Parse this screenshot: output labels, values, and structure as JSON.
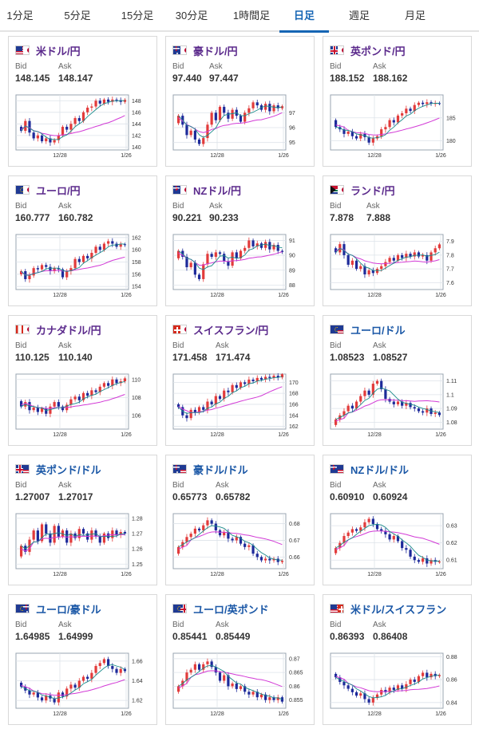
{
  "tabs": [
    {
      "label": "1分足",
      "active": false
    },
    {
      "label": "5分足",
      "active": false
    },
    {
      "label": "15分足",
      "active": false
    },
    {
      "label": "30分足",
      "active": false
    },
    {
      "label": "1時間足",
      "active": false
    },
    {
      "label": "日足",
      "active": true
    },
    {
      "label": "週足",
      "active": false
    },
    {
      "label": "月足",
      "active": false
    }
  ],
  "labels": {
    "bid": "Bid",
    "ask": "Ask"
  },
  "colors": {
    "up": "#e23b3b",
    "down": "#1d2a9a",
    "ma_short": "#1a8a8a",
    "ma_long": "#d23ad6",
    "title_purple": "#5b2a8c",
    "title_blue": "#1a57a6",
    "active_tab": "#1565b4"
  },
  "cards": [
    {
      "name": "米ドル/円",
      "flag": "us",
      "bid": "148.145",
      "ask": "148.147",
      "yticks": [
        "148",
        "146",
        "144",
        "142",
        "140"
      ],
      "xticks": [
        "12/28",
        "1/26"
      ],
      "chart_data": {
        "type": "candlestick",
        "x": [
          "12/28",
          "1/26"
        ],
        "ylim": [
          139.5,
          149
        ],
        "path": [
          143.5,
          142.8,
          144.5,
          142.5,
          141.5,
          142,
          141,
          141.5,
          140.8,
          141.2,
          142,
          143.5,
          143,
          144,
          145,
          144.5,
          146,
          146.8,
          147,
          148,
          147.5,
          148.2,
          147.8,
          148.2,
          148.1,
          147.8,
          148.145
        ]
      }
    },
    {
      "name": "豪ドル/円",
      "flag": "au",
      "bid": "97.440",
      "ask": "97.447",
      "yticks": [
        "97",
        "96",
        "95"
      ],
      "xticks": [
        "12/28",
        "1/26"
      ],
      "chart_data": {
        "type": "candlestick",
        "x": [
          "12/28",
          "1/26"
        ],
        "ylim": [
          94.5,
          98.2
        ],
        "path": [
          96.3,
          96.8,
          96.2,
          95.5,
          95.8,
          95.2,
          94.9,
          95.3,
          96.2,
          97,
          96.5,
          97.4,
          97,
          96.6,
          97.2,
          96.8,
          96.4,
          97,
          97.3,
          97.7,
          97.5,
          97.2,
          97.6,
          97.1,
          97.5,
          97.3,
          97.44
        ]
      }
    },
    {
      "name": "英ポンド/円",
      "flag": "gb",
      "bid": "188.152",
      "ask": "188.162",
      "yticks": [
        "185",
        "180"
      ],
      "xticks": [
        "12/28",
        "1/26"
      ],
      "chart_data": {
        "type": "candlestick",
        "x": [
          "12/28",
          "1/26"
        ],
        "ylim": [
          178,
          190
        ],
        "path": [
          184.5,
          183,
          182.5,
          181.5,
          182,
          181,
          180.5,
          181.5,
          180.8,
          179.6,
          180.5,
          181,
          182.5,
          183,
          184.5,
          184,
          185.5,
          186,
          187,
          186.5,
          187.8,
          188.3,
          188,
          188.4,
          188.1,
          188.2,
          188.152
        ]
      }
    },
    {
      "name": "ユーロ/円",
      "flag": "eu",
      "bid": "160.777",
      "ask": "160.782",
      "yticks": [
        "162",
        "160",
        "158",
        "156",
        "154"
      ],
      "xticks": [
        "12/28",
        "1/26"
      ],
      "chart_data": {
        "type": "candlestick",
        "x": [
          "12/28",
          "1/26"
        ],
        "ylim": [
          153.5,
          162.5
        ],
        "path": [
          156,
          156.5,
          155.2,
          155.8,
          157,
          156.8,
          157.5,
          157.2,
          156.5,
          157,
          156.8,
          155.5,
          156.5,
          157,
          158.5,
          158,
          159,
          158.6,
          159.5,
          160.5,
          160,
          161,
          161.4,
          161,
          160.5,
          160.9,
          160.777
        ]
      }
    },
    {
      "name": "NZドル/円",
      "flag": "nz",
      "bid": "90.221",
      "ask": "90.233",
      "yticks": [
        "91",
        "90",
        "89",
        "88"
      ],
      "xticks": [
        "12/28",
        "1/26"
      ],
      "chart_data": {
        "type": "candlestick",
        "x": [
          "12/28",
          "1/26"
        ],
        "ylim": [
          87.7,
          91.4
        ],
        "path": [
          89.8,
          90.3,
          89.9,
          89.2,
          89.5,
          88.7,
          88.4,
          89.4,
          90.1,
          89.9,
          90.2,
          90.1,
          89.6,
          89.3,
          90.2,
          89.8,
          90.3,
          90.5,
          91,
          90.6,
          90.8,
          90.5,
          90.9,
          90.4,
          90.7,
          90.3,
          90.221
        ]
      }
    },
    {
      "name": "ランド/円",
      "flag": "za",
      "bid": "7.878",
      "ask": "7.888",
      "yticks": [
        "7.9",
        "7.8",
        "7.7",
        "7.6"
      ],
      "xticks": [
        "12/28",
        "1/26"
      ],
      "chart_data": {
        "type": "candlestick",
        "x": [
          "12/28",
          "1/26"
        ],
        "ylim": [
          7.55,
          7.95
        ],
        "path": [
          7.85,
          7.82,
          7.88,
          7.8,
          7.73,
          7.76,
          7.7,
          7.72,
          7.66,
          7.69,
          7.67,
          7.7,
          7.72,
          7.75,
          7.78,
          7.76,
          7.8,
          7.78,
          7.81,
          7.79,
          7.82,
          7.79,
          7.8,
          7.76,
          7.82,
          7.85,
          7.878
        ]
      }
    },
    {
      "name": "カナダドル/円",
      "flag": "ca",
      "bid": "110.125",
      "ask": "110.140",
      "yticks": [
        "110",
        "108",
        "106"
      ],
      "xticks": [
        "12/28",
        "1/26"
      ],
      "chart_data": {
        "type": "candlestick",
        "x": [
          "12/28",
          "1/26"
        ],
        "ylim": [
          104.5,
          110.6
        ],
        "path": [
          107.6,
          107,
          107.5,
          106.6,
          106.9,
          106.4,
          106.8,
          106.2,
          107,
          107.5,
          107,
          106.6,
          107.2,
          107.8,
          108.1,
          107.7,
          108.5,
          108.2,
          108.8,
          108.6,
          109.2,
          109.6,
          109.3,
          110,
          109.6,
          109.8,
          110.125
        ]
      }
    },
    {
      "name": "スイスフラン/円",
      "flag": "ch",
      "bid": "171.458",
      "ask": "171.474",
      "yticks": [
        "170",
        "168",
        "166",
        "164",
        "162"
      ],
      "xticks": [
        "12/28",
        "1/26"
      ],
      "chart_data": {
        "type": "candlestick",
        "x": [
          "12/28",
          "1/26"
        ],
        "ylim": [
          161.5,
          171.5
        ],
        "path": [
          166,
          165.5,
          164,
          163.5,
          165,
          164.5,
          165.5,
          165,
          166.5,
          166,
          167.5,
          167,
          168.5,
          168.2,
          169.5,
          169,
          170,
          169.7,
          170.5,
          170.2,
          170.8,
          170.5,
          171,
          170.8,
          171.2,
          170.9,
          171.458
        ]
      }
    },
    {
      "name": "ユーロ/ドル",
      "flag": "eu-us",
      "blue": true,
      "bid": "1.08523",
      "ask": "1.08527",
      "yticks": [
        "1.11",
        "1.1",
        "1.09",
        "1.08"
      ],
      "xticks": [
        "12/28",
        "1/26"
      ],
      "chart_data": {
        "type": "candlestick",
        "x": [
          "12/28",
          "1/26"
        ],
        "ylim": [
          1.075,
          1.115
        ],
        "path": [
          1.078,
          1.082,
          1.085,
          1.088,
          1.092,
          1.09,
          1.095,
          1.099,
          1.103,
          1.1,
          1.108,
          1.11,
          1.104,
          1.097,
          1.095,
          1.093,
          1.095,
          1.092,
          1.094,
          1.091,
          1.09,
          1.088,
          1.087,
          1.09,
          1.086,
          1.087,
          1.08523
        ]
      }
    },
    {
      "name": "英ポンド/ドル",
      "flag": "gb-us",
      "blue": true,
      "bid": "1.27007",
      "ask": "1.27017",
      "yticks": [
        "1.28",
        "1.27",
        "1.26",
        "1.25"
      ],
      "xticks": [
        "12/28",
        "1/26"
      ],
      "chart_data": {
        "type": "candlestick",
        "x": [
          "12/28",
          "1/26"
        ],
        "ylim": [
          1.247,
          1.283
        ],
        "path": [
          1.255,
          1.262,
          1.258,
          1.266,
          1.272,
          1.265,
          1.276,
          1.27,
          1.264,
          1.275,
          1.268,
          1.272,
          1.264,
          1.27,
          1.267,
          1.273,
          1.27,
          1.266,
          1.272,
          1.268,
          1.264,
          1.27,
          1.267,
          1.272,
          1.269,
          1.271,
          1.27007
        ]
      }
    },
    {
      "name": "豪ドル/ドル",
      "flag": "au-us",
      "blue": true,
      "bid": "0.65773",
      "ask": "0.65782",
      "yticks": [
        "0.68",
        "0.67",
        "0.66"
      ],
      "xticks": [
        "12/28",
        "1/26"
      ],
      "chart_data": {
        "type": "candlestick",
        "x": [
          "12/28",
          "1/26"
        ],
        "ylim": [
          0.653,
          0.686
        ],
        "path": [
          0.662,
          0.666,
          0.669,
          0.672,
          0.674,
          0.677,
          0.676,
          0.679,
          0.682,
          0.68,
          0.676,
          0.673,
          0.675,
          0.671,
          0.67,
          0.672,
          0.668,
          0.666,
          0.667,
          0.662,
          0.66,
          0.658,
          0.659,
          0.658,
          0.659,
          0.657,
          0.65773
        ]
      }
    },
    {
      "name": "NZドル/ドル",
      "flag": "nz-us",
      "blue": true,
      "bid": "0.60910",
      "ask": "0.60924",
      "yticks": [
        "0.63",
        "0.62",
        "0.61"
      ],
      "xticks": [
        "12/28",
        "1/26"
      ],
      "chart_data": {
        "type": "candlestick",
        "x": [
          "12/28",
          "1/26"
        ],
        "ylim": [
          0.605,
          0.637
        ],
        "path": [
          0.614,
          0.617,
          0.62,
          0.624,
          0.626,
          0.628,
          0.627,
          0.629,
          0.632,
          0.634,
          0.631,
          0.628,
          0.627,
          0.625,
          0.622,
          0.624,
          0.621,
          0.617,
          0.616,
          0.612,
          0.61,
          0.609,
          0.611,
          0.608,
          0.61,
          0.609,
          0.6091
        ]
      }
    },
    {
      "name": "ユーロ/豪ドル",
      "flag": "eu-au",
      "blue": true,
      "bid": "1.64985",
      "ask": "1.64999",
      "yticks": [
        "1.66",
        "1.64",
        "1.62"
      ],
      "xticks": [
        "12/28",
        "1/26"
      ],
      "chart_data": {
        "type": "candlestick",
        "x": [
          "12/28",
          "1/26"
        ],
        "ylim": [
          1.612,
          1.668
        ],
        "path": [
          1.638,
          1.634,
          1.63,
          1.626,
          1.628,
          1.623,
          1.62,
          1.625,
          1.622,
          1.618,
          1.628,
          1.624,
          1.632,
          1.636,
          1.633,
          1.64,
          1.644,
          1.642,
          1.648,
          1.655,
          1.658,
          1.662,
          1.655,
          1.652,
          1.648,
          1.652,
          1.64985
        ]
      }
    },
    {
      "name": "ユーロ/英ポンド",
      "flag": "eu-gb",
      "blue": true,
      "bid": "0.85441",
      "ask": "0.85449",
      "yticks": [
        "0.87",
        "0.865",
        "0.86",
        "0.855"
      ],
      "xticks": [
        "12/28",
        "1/26"
      ],
      "chart_data": {
        "type": "candlestick",
        "x": [
          "12/28",
          "1/26"
        ],
        "ylim": [
          0.852,
          0.872
        ],
        "path": [
          0.858,
          0.86,
          0.862,
          0.865,
          0.866,
          0.868,
          0.866,
          0.868,
          0.869,
          0.867,
          0.865,
          0.862,
          0.864,
          0.86,
          0.861,
          0.859,
          0.86,
          0.858,
          0.857,
          0.858,
          0.856,
          0.857,
          0.855,
          0.856,
          0.855,
          0.856,
          0.85441
        ]
      }
    },
    {
      "name": "米ドル/スイスフラン",
      "flag": "us-ch",
      "blue": true,
      "bid": "0.86393",
      "ask": "0.86408",
      "yticks": [
        "0.88",
        "0.86",
        "0.84"
      ],
      "xticks": [
        "12/28",
        "1/26"
      ],
      "chart_data": {
        "type": "candlestick",
        "x": [
          "12/28",
          "1/26"
        ],
        "ylim": [
          0.835,
          0.883
        ],
        "path": [
          0.865,
          0.862,
          0.858,
          0.855,
          0.852,
          0.849,
          0.846,
          0.848,
          0.843,
          0.84,
          0.844,
          0.847,
          0.851,
          0.849,
          0.853,
          0.851,
          0.855,
          0.852,
          0.856,
          0.86,
          0.858,
          0.863,
          0.866,
          0.862,
          0.865,
          0.863,
          0.86393
        ]
      }
    }
  ]
}
